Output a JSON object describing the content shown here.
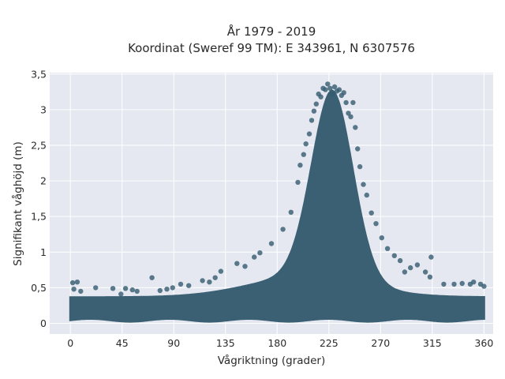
{
  "chart_data": {
    "type": "scatter",
    "title": "År 1979 - 2019",
    "subtitle": "Koordinat (Sweref 99 TM): E 343961, N 6307576",
    "xlabel": "Vågriktning (grader)",
    "ylabel": "Signifikant våghöjd (m)",
    "xlim": [
      -18,
      368
    ],
    "ylim": [
      -0.15,
      3.52
    ],
    "x_ticks": [
      0,
      45,
      90,
      135,
      180,
      225,
      270,
      315,
      360
    ],
    "x_tick_labels": [
      "0",
      "45",
      "90",
      "135",
      "180",
      "225",
      "270",
      "315",
      "360"
    ],
    "y_ticks": [
      0,
      0.5,
      1,
      1.5,
      2,
      2.5,
      3,
      3.5
    ],
    "y_tick_labels": [
      "0",
      "0,5",
      "1",
      "1,5",
      "2",
      "2,5",
      "3",
      "3,5"
    ],
    "grid": true,
    "background_color": "#e5e8f0",
    "marker_color": "#355b70",
    "series": [
      {
        "points": [
          [
            2,
            0.57
          ],
          [
            6,
            0.58
          ],
          [
            3,
            0.48
          ],
          [
            9,
            0.45
          ],
          [
            22,
            0.5
          ],
          [
            37,
            0.49
          ],
          [
            48,
            0.49
          ],
          [
            54,
            0.47
          ],
          [
            71,
            0.64
          ],
          [
            96,
            0.55
          ],
          [
            103,
            0.53
          ],
          [
            115,
            0.6
          ],
          [
            121,
            0.58
          ],
          [
            126,
            0.64
          ],
          [
            131,
            0.73
          ],
          [
            145,
            0.84
          ],
          [
            152,
            0.8
          ],
          [
            160,
            0.93
          ],
          [
            165,
            0.99
          ],
          [
            175,
            1.12
          ],
          [
            185,
            1.32
          ],
          [
            192,
            1.56
          ],
          [
            198,
            1.98
          ],
          [
            200,
            2.22
          ],
          [
            203,
            2.37
          ],
          [
            205,
            2.52
          ],
          [
            208,
            2.66
          ],
          [
            210,
            2.85
          ],
          [
            212,
            2.98
          ],
          [
            214,
            3.08
          ],
          [
            216,
            3.22
          ],
          [
            218,
            3.18
          ],
          [
            220,
            3.3
          ],
          [
            222,
            3.28
          ],
          [
            224,
            3.36
          ],
          [
            226,
            3.3
          ],
          [
            228,
            3.22
          ],
          [
            230,
            3.32
          ],
          [
            232,
            3.26
          ],
          [
            234,
            3.28
          ],
          [
            236,
            3.2
          ],
          [
            238,
            3.24
          ],
          [
            240,
            3.1
          ],
          [
            242,
            2.95
          ],
          [
            244,
            2.9
          ],
          [
            246,
            3.1
          ],
          [
            248,
            2.75
          ],
          [
            250,
            2.45
          ],
          [
            252,
            2.2
          ],
          [
            255,
            1.95
          ],
          [
            258,
            1.8
          ],
          [
            262,
            1.55
          ],
          [
            266,
            1.4
          ],
          [
            271,
            1.2
          ],
          [
            276,
            1.05
          ],
          [
            282,
            0.95
          ],
          [
            287,
            0.88
          ],
          [
            291,
            0.72
          ],
          [
            296,
            0.78
          ],
          [
            302,
            0.82
          ],
          [
            309,
            0.72
          ],
          [
            313,
            0.65
          ],
          [
            314,
            0.93
          ],
          [
            325,
            0.55
          ],
          [
            334,
            0.55
          ],
          [
            341,
            0.56
          ],
          [
            348,
            0.55
          ],
          [
            351,
            0.58
          ],
          [
            357,
            0.55
          ],
          [
            360,
            0.52
          ],
          [
            44,
            0.41
          ],
          [
            58,
            0.45
          ],
          [
            78,
            0.46
          ],
          [
            84,
            0.48
          ],
          [
            89,
            0.5
          ]
        ]
      }
    ]
  }
}
